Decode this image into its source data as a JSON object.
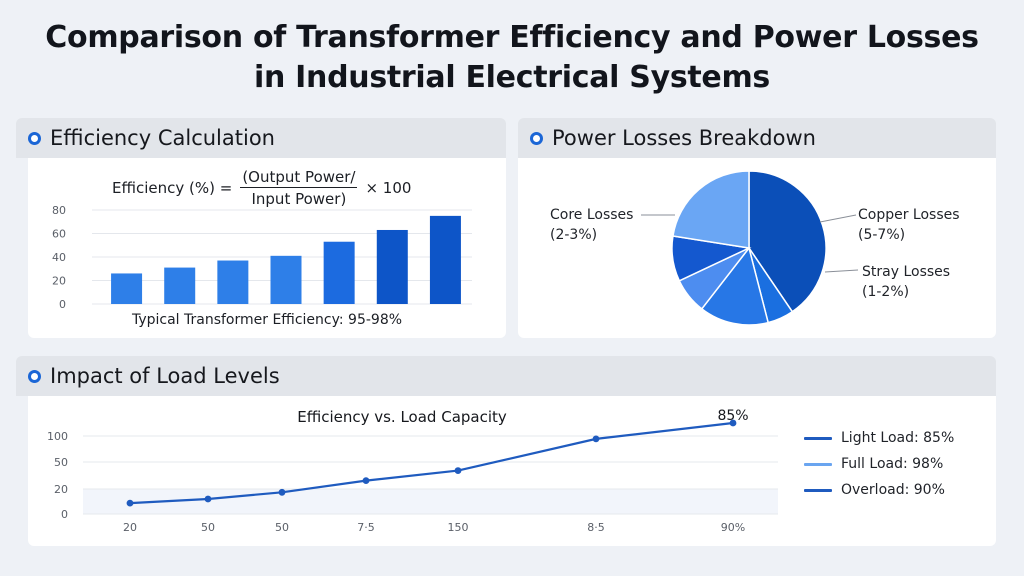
{
  "title_line1": "Comparison of Transformer Efficiency and Power Losses",
  "title_line2": "in Industrial Electrical Systems",
  "efficiency": {
    "heading": "Efficiency Calculation",
    "formula_lhs": "Efficiency (%) =",
    "formula_num": "(Output Power/",
    "formula_den": "Input Power)",
    "formula_mult": "× 100",
    "caption": "Typical Transformer Efficiency: 95-98%"
  },
  "losses": {
    "heading": "Power Losses Breakdown",
    "labels": [
      {
        "name": "Core Losses",
        "range": "(2-3%)"
      },
      {
        "name": "Copper Losses",
        "range": "(5-7%)"
      },
      {
        "name": "Stray Losses",
        "range": "(1-2%)"
      }
    ]
  },
  "load": {
    "heading": "Impact of Load Levels",
    "chart_title": "Efficiency vs. Load Capacity",
    "peak_label": "85%",
    "legend": [
      {
        "label": "Light Load: 85%",
        "color": "#1f5bbf"
      },
      {
        "label": "Full Load: 98%",
        "color": "#6aa5f0"
      },
      {
        "label": "Overload: 90%",
        "color": "#1f5bbf"
      }
    ]
  },
  "colors": {
    "accent": "#1b66d6",
    "bar_light": "#2e7fe8",
    "bar_dark": "#0d55c8",
    "line": "#1f5bbf"
  },
  "chart_data": [
    {
      "type": "bar",
      "title": "",
      "categories": [
        "",
        "",
        "",
        "",
        "",
        "",
        ""
      ],
      "values": [
        26,
        31,
        37,
        41,
        53,
        63,
        75
      ],
      "yticks": [
        0,
        20,
        40,
        60,
        80
      ],
      "ylim": [
        0,
        80
      ]
    },
    {
      "type": "pie",
      "title": "",
      "slices": [
        {
          "label": "Core Losses",
          "value": 40.5,
          "color": "#0b4fb8"
        },
        {
          "label": "",
          "value": 5.5,
          "color": "#1a6fe0"
        },
        {
          "label": "Copper Losses",
          "value": 14.5,
          "color": "#2777e6"
        },
        {
          "label": "",
          "value": 7.5,
          "color": "#4d8df0"
        },
        {
          "label": "Stray Losses",
          "value": 9.5,
          "color": "#1458cf"
        },
        {
          "label": "",
          "value": 22.5,
          "color": "#6aa6f4"
        }
      ]
    },
    {
      "type": "line",
      "title": "Efficiency vs. Load Capacity",
      "x": [
        "20",
        "50",
        "50",
        "7·5",
        "150",
        "8·5",
        "90%"
      ],
      "y": [
        13,
        18,
        26,
        40,
        52,
        90,
        109
      ],
      "yticks": [
        "0",
        "20",
        "50",
        "100"
      ],
      "ylim": [
        0,
        115
      ]
    }
  ]
}
